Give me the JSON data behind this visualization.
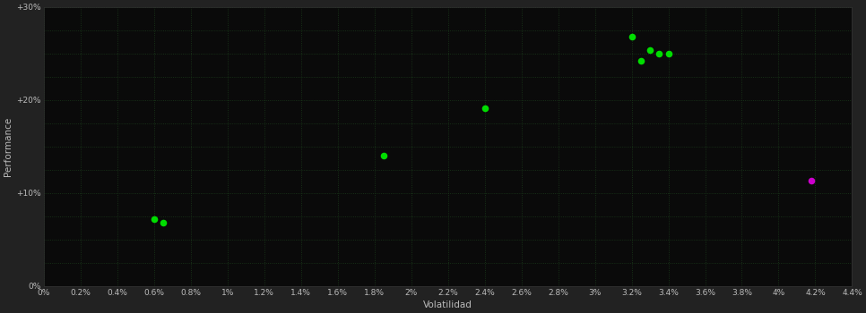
{
  "background_color": "#222222",
  "plot_bg_color": "#0a0a0a",
  "grid_color": "#1a3a1a",
  "tick_label_color": "#bbbbbb",
  "axis_label_color": "#bbbbbb",
  "xlabel": "Volatilidad",
  "ylabel": "Performance",
  "xlim": [
    0.0,
    0.044
  ],
  "ylim": [
    0.0,
    0.3
  ],
  "xticks": [
    0.0,
    0.002,
    0.004,
    0.006,
    0.008,
    0.01,
    0.012,
    0.014,
    0.016,
    0.018,
    0.02,
    0.022,
    0.024,
    0.026,
    0.028,
    0.03,
    0.032,
    0.034,
    0.036,
    0.038,
    0.04,
    0.042,
    0.044
  ],
  "xtick_labels": [
    "0%",
    "0.2%",
    "0.4%",
    "0.6%",
    "0.8%",
    "1%",
    "1.2%",
    "1.4%",
    "1.6%",
    "1.8%",
    "2%",
    "2.2%",
    "2.4%",
    "2.6%",
    "2.8%",
    "3%",
    "3.2%",
    "3.4%",
    "3.6%",
    "3.8%",
    "4%",
    "4.2%",
    "4.4%"
  ],
  "yticks": [
    0.0,
    0.1,
    0.2,
    0.3
  ],
  "ytick_labels": [
    "0%",
    "+10%",
    "+20%",
    "+30%"
  ],
  "green_points": [
    [
      0.006,
      0.072
    ],
    [
      0.0065,
      0.068
    ],
    [
      0.0185,
      0.14
    ],
    [
      0.024,
      0.191
    ],
    [
      0.032,
      0.268
    ],
    [
      0.033,
      0.254
    ],
    [
      0.0335,
      0.25
    ],
    [
      0.0325,
      0.242
    ],
    [
      0.034,
      0.25
    ]
  ],
  "magenta_points": [
    [
      0.0418,
      0.113
    ]
  ],
  "point_size": 30,
  "green_color": "#00dd00",
  "magenta_color": "#cc00cc",
  "font_size_ticks": 6.5,
  "font_size_labels": 7.5,
  "font_size_ylabel": 7.5
}
